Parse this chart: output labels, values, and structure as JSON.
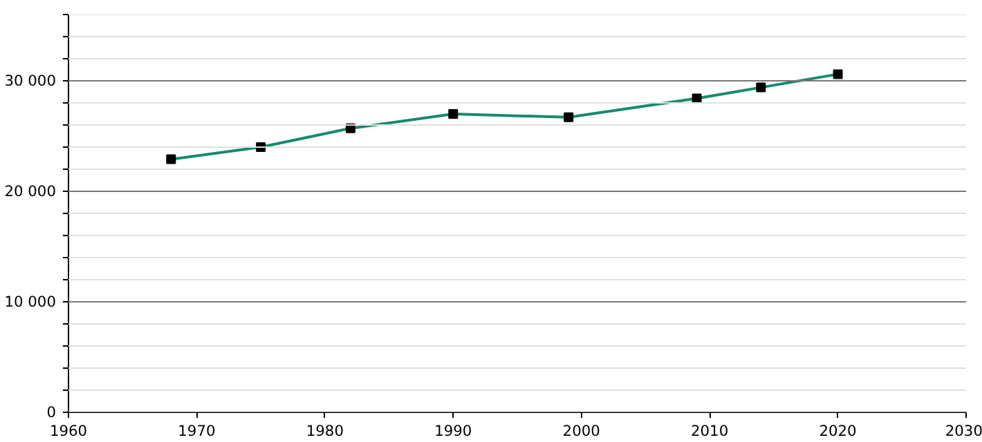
{
  "chart_data": {
    "type": "line",
    "x": [
      1968,
      1975,
      1982,
      1990,
      1999,
      2009,
      2014,
      2020
    ],
    "series": [
      {
        "color": "#178a6c",
        "values": [
          22900,
          24000,
          25700,
          27000,
          26700,
          28400,
          29400,
          30600
        ]
      }
    ],
    "marker": "square",
    "line_style": "solid",
    "grid": "y",
    "xlim": [
      1960,
      2030
    ],
    "xticks": [
      1960,
      1970,
      1980,
      1990,
      2000,
      2010,
      2020,
      2030
    ],
    "ylim": [
      0,
      36000
    ],
    "yticks": [
      {
        "value": 0,
        "label": "0"
      },
      {
        "value": 2000,
        "label": null
      },
      {
        "value": 4000,
        "label": null
      },
      {
        "value": 6000,
        "label": null
      },
      {
        "value": 8000,
        "label": null
      },
      {
        "value": 10000,
        "label": "10 000"
      },
      {
        "value": 12000,
        "label": null
      },
      {
        "value": 14000,
        "label": null
      },
      {
        "value": 16000,
        "label": null
      },
      {
        "value": 18000,
        "label": null
      },
      {
        "value": 20000,
        "label": "20 000"
      },
      {
        "value": 22000,
        "label": null
      },
      {
        "value": 24000,
        "label": null
      },
      {
        "value": 26000,
        "label": null
      },
      {
        "value": 28000,
        "label": null
      },
      {
        "value": 30000,
        "label": "30 000"
      },
      {
        "value": 32000,
        "label": null
      },
      {
        "value": 34000,
        "label": null
      },
      {
        "value": 36000,
        "label": null
      }
    ]
  }
}
